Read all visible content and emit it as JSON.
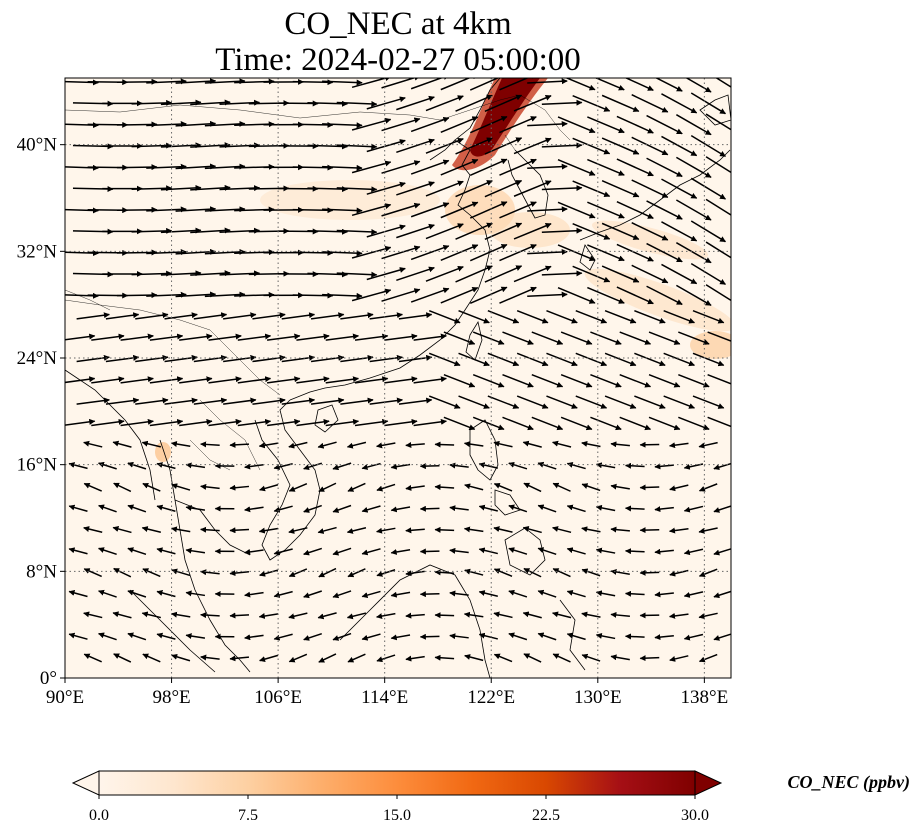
{
  "title": {
    "line1": "CO_NEC at 4km",
    "line2": "Time: 2024-02-27 05:00:00"
  },
  "map": {
    "lon_range": [
      90,
      140
    ],
    "lat_range": [
      0,
      45
    ],
    "lon_ticks": [
      "90°E",
      "98°E",
      "106°E",
      "114°E",
      "122°E",
      "130°E",
      "138°E"
    ],
    "lat_ticks": [
      "0°",
      "8°N",
      "16°N",
      "24°N",
      "32°N",
      "40°N"
    ],
    "gridlines": true,
    "field": "CO_NEC",
    "vectors": "wind"
  },
  "colorbar": {
    "label": "CO_NEC (ppbv)",
    "ticks": [
      "0.0",
      "7.5",
      "15.0",
      "22.5",
      "30.0"
    ],
    "min": 0,
    "max": 30,
    "extend": "both",
    "colors": [
      "#fff5eb",
      "#fee6ce",
      "#fdd0a2",
      "#fdae6b",
      "#fd8d3c",
      "#f16913",
      "#d94801",
      "#a50f15",
      "#7f0000"
    ]
  }
}
